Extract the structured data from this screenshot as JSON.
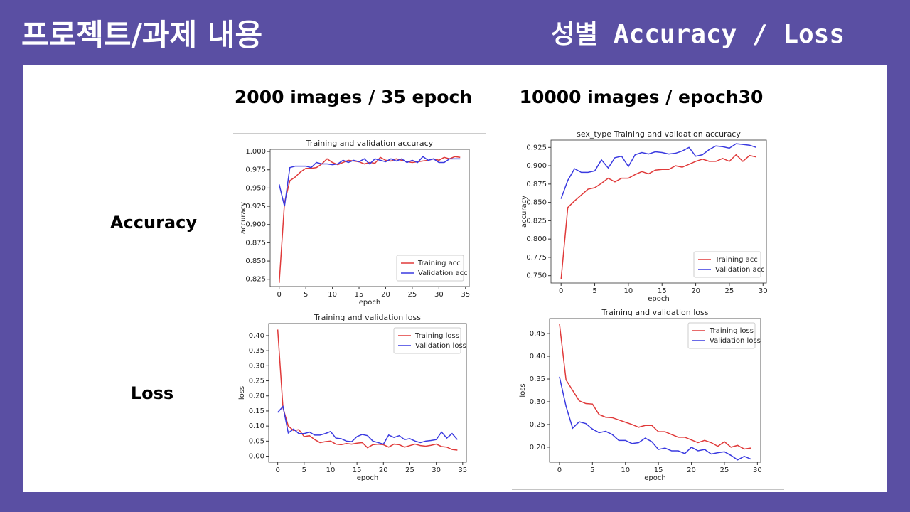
{
  "header": {
    "title": "프로젝트/과제 내용",
    "subtitle": "성별 Accuracy / Loss"
  },
  "columns": [
    "2000 images / 35 epoch",
    "10000 images / epoch30"
  ],
  "rows": [
    "Accuracy",
    "Loss"
  ],
  "chart_data": [
    {
      "type": "line",
      "title": "Training and validation accuracy",
      "xlabel": "epoch",
      "ylabel": "accuracy",
      "x": [
        0,
        1,
        2,
        3,
        4,
        5,
        6,
        7,
        8,
        9,
        10,
        11,
        12,
        13,
        14,
        15,
        16,
        17,
        18,
        19,
        20,
        21,
        22,
        23,
        24,
        25,
        26,
        27,
        28,
        29,
        30,
        31,
        32,
        33,
        34
      ],
      "series": [
        {
          "name": "Training acc",
          "color": "#e03a3a",
          "values": [
            0.82,
            0.93,
            0.96,
            0.965,
            0.972,
            0.977,
            0.977,
            0.978,
            0.983,
            0.99,
            0.985,
            0.982,
            0.985,
            0.988,
            0.987,
            0.986,
            0.983,
            0.985,
            0.984,
            0.992,
            0.988,
            0.987,
            0.99,
            0.988,
            0.986,
            0.985,
            0.986,
            0.987,
            0.988,
            0.99,
            0.988,
            0.992,
            0.99,
            0.993,
            0.992
          ]
        },
        {
          "name": "Validation acc",
          "color": "#3a3ae0",
          "values": [
            0.955,
            0.925,
            0.978,
            0.98,
            0.98,
            0.98,
            0.978,
            0.985,
            0.983,
            0.983,
            0.982,
            0.983,
            0.988,
            0.985,
            0.988,
            0.986,
            0.99,
            0.983,
            0.99,
            0.988,
            0.986,
            0.99,
            0.987,
            0.99,
            0.985,
            0.988,
            0.985,
            0.993,
            0.988,
            0.99,
            0.985,
            0.985,
            0.99,
            0.99,
            0.99
          ]
        }
      ],
      "xlim": [
        -1.7,
        35.7
      ],
      "xticks": [
        0,
        5,
        10,
        15,
        20,
        25,
        30,
        35
      ],
      "ylim": [
        0.815,
        1.003
      ],
      "yticks": [
        0.825,
        {
          "value": 0.85,
          "label": "0.850"
        },
        0.875,
        {
          "value": 0.9,
          "label": "0.900"
        },
        0.925,
        {
          "value": 0.95,
          "label": "0.950"
        },
        0.975,
        {
          "value": 1,
          "label": "1.000"
        }
      ],
      "legend": "lower right"
    },
    {
      "type": "line",
      "title": "sex_type Training and validation accuracy",
      "xlabel": "epoch",
      "ylabel": "accuracy",
      "x": [
        0,
        1,
        2,
        3,
        4,
        5,
        6,
        7,
        8,
        9,
        10,
        11,
        12,
        13,
        14,
        15,
        16,
        17,
        18,
        19,
        20,
        21,
        22,
        23,
        24,
        25,
        26,
        27,
        28,
        29
      ],
      "series": [
        {
          "name": "Training acc",
          "color": "#e03a3a",
          "values": [
            0.745,
            0.843,
            0.852,
            0.86,
            0.868,
            0.87,
            0.876,
            0.883,
            0.878,
            0.883,
            0.883,
            0.888,
            0.892,
            0.889,
            0.894,
            0.895,
            0.895,
            0.9,
            0.898,
            0.902,
            0.906,
            0.909,
            0.906,
            0.906,
            0.91,
            0.906,
            0.915,
            0.906,
            0.914,
            0.912
          ]
        },
        {
          "name": "Validation acc",
          "color": "#3a3ae0",
          "values": [
            0.855,
            0.88,
            0.896,
            0.891,
            0.891,
            0.893,
            0.908,
            0.897,
            0.911,
            0.913,
            0.899,
            0.915,
            0.918,
            0.916,
            0.919,
            0.918,
            0.916,
            0.917,
            0.92,
            0.925,
            0.913,
            0.915,
            0.922,
            0.927,
            0.926,
            0.924,
            0.93,
            0.929,
            0.928,
            0.925
          ]
        }
      ],
      "xlim": [
        -1.5,
        30.5
      ],
      "xticks": [
        0,
        5,
        10,
        15,
        20,
        25,
        30
      ],
      "ylim": [
        0.74,
        0.935
      ],
      "yticks": [
        {
          "value": 0.75,
          "label": "0.750"
        },
        0.775,
        {
          "value": 0.8,
          "label": "0.800"
        },
        0.825,
        {
          "value": 0.85,
          "label": "0.850"
        },
        0.875,
        {
          "value": 0.9,
          "label": "0.900"
        },
        0.925
      ],
      "legend": "lower right"
    },
    {
      "type": "line",
      "title": "Training and validation loss",
      "xlabel": "epoch",
      "ylabel": "loss",
      "x": [
        0,
        1,
        2,
        3,
        4,
        5,
        6,
        7,
        8,
        9,
        10,
        11,
        12,
        13,
        14,
        15,
        16,
        17,
        18,
        19,
        20,
        21,
        22,
        23,
        24,
        25,
        26,
        27,
        28,
        29,
        30,
        31,
        32,
        33,
        34
      ],
      "series": [
        {
          "name": "Training loss",
          "color": "#e03a3a",
          "values": [
            0.42,
            0.16,
            0.1,
            0.085,
            0.088,
            0.065,
            0.068,
            0.055,
            0.045,
            0.048,
            0.05,
            0.04,
            0.038,
            0.042,
            0.04,
            0.043,
            0.045,
            0.028,
            0.038,
            0.04,
            0.038,
            0.03,
            0.04,
            0.038,
            0.03,
            0.035,
            0.04,
            0.035,
            0.033,
            0.036,
            0.04,
            0.032,
            0.03,
            0.022,
            0.02
          ]
        },
        {
          "name": "Validation loss",
          "color": "#3a3ae0",
          "values": [
            0.145,
            0.165,
            0.077,
            0.09,
            0.075,
            0.075,
            0.08,
            0.07,
            0.07,
            0.075,
            0.082,
            0.06,
            0.058,
            0.05,
            0.048,
            0.065,
            0.072,
            0.068,
            0.05,
            0.045,
            0.04,
            0.07,
            0.062,
            0.068,
            0.055,
            0.058,
            0.05,
            0.045,
            0.05,
            0.052,
            0.055,
            0.08,
            0.06,
            0.075,
            0.055
          ]
        }
      ],
      "xlim": [
        -1.7,
        35.7
      ],
      "xticks": [
        0,
        5,
        10,
        15,
        20,
        25,
        30,
        35
      ],
      "ylim": [
        -0.02,
        0.44
      ],
      "yticks": [
        {
          "value": 0,
          "label": "0.00"
        },
        0.05,
        {
          "value": 0.1,
          "label": "0.10"
        },
        0.15,
        {
          "value": 0.2,
          "label": "0.20"
        },
        0.25,
        {
          "value": 0.3,
          "label": "0.30"
        },
        0.35,
        {
          "value": 0.4,
          "label": "0.40"
        }
      ],
      "legend": "upper right"
    },
    {
      "type": "line",
      "title": "Training and validation loss",
      "xlabel": "epoch",
      "ylabel": "loss",
      "x": [
        0,
        1,
        2,
        3,
        4,
        5,
        6,
        7,
        8,
        9,
        10,
        11,
        12,
        13,
        14,
        15,
        16,
        17,
        18,
        19,
        20,
        21,
        22,
        23,
        24,
        25,
        26,
        27,
        28,
        29
      ],
      "series": [
        {
          "name": "Training loss",
          "color": "#e03a3a",
          "values": [
            0.472,
            0.348,
            0.325,
            0.302,
            0.296,
            0.295,
            0.272,
            0.266,
            0.265,
            0.26,
            0.255,
            0.25,
            0.244,
            0.248,
            0.248,
            0.234,
            0.234,
            0.228,
            0.222,
            0.222,
            0.216,
            0.21,
            0.215,
            0.21,
            0.202,
            0.212,
            0.2,
            0.204,
            0.196,
            0.198
          ]
        },
        {
          "name": "Validation loss",
          "color": "#3a3ae0",
          "values": [
            0.355,
            0.29,
            0.242,
            0.256,
            0.252,
            0.24,
            0.232,
            0.235,
            0.228,
            0.215,
            0.215,
            0.208,
            0.21,
            0.22,
            0.212,
            0.195,
            0.198,
            0.192,
            0.192,
            0.186,
            0.2,
            0.192,
            0.195,
            0.185,
            0.188,
            0.19,
            0.182,
            0.172,
            0.18,
            0.174
          ]
        }
      ],
      "xlim": [
        -1.5,
        30.5
      ],
      "xticks": [
        0,
        5,
        10,
        15,
        20,
        25,
        30
      ],
      "ylim": [
        0.167,
        0.483
      ],
      "yticks": [
        {
          "value": 0.2,
          "label": "0.20"
        },
        0.25,
        {
          "value": 0.3,
          "label": "0.30"
        },
        0.35,
        {
          "value": 0.4,
          "label": "0.40"
        },
        0.45
      ],
      "legend": "upper right"
    }
  ]
}
